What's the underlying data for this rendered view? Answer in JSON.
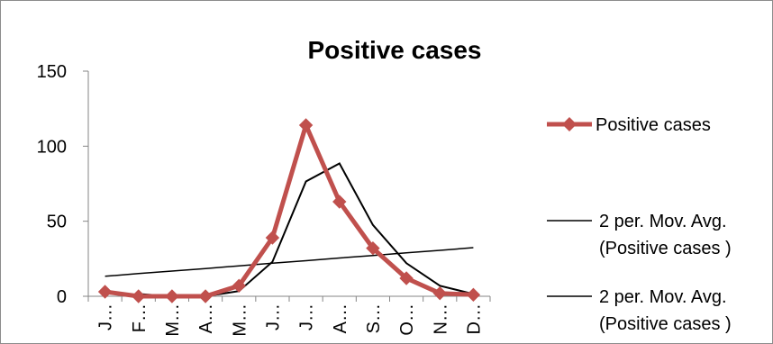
{
  "chart_data": {
    "type": "line",
    "title": "Positive cases",
    "categories": [
      "J…",
      "F…",
      "M…",
      "A…",
      "M…",
      "J…",
      "J…",
      "A…",
      "S…",
      "O…",
      "N…",
      "D…"
    ],
    "ylim": [
      0,
      150
    ],
    "yticks": [
      0,
      50,
      100,
      150
    ],
    "grid": false,
    "legend_position": "right",
    "series": [
      {
        "name": "Positive cases",
        "kind": "markers-line",
        "color": "#c0504d",
        "values": [
          3,
          0,
          0,
          0,
          7,
          39,
          114,
          63,
          32,
          12,
          2,
          1
        ]
      },
      {
        "name_lines": [
          "2 per. Mov. Avg.",
          "(Positive cases )"
        ],
        "kind": "moving-average",
        "color": "#000000",
        "values": [
          null,
          1.5,
          0,
          0,
          3.5,
          23,
          76.5,
          88.5,
          47.5,
          22,
          7,
          1.5
        ]
      },
      {
        "name_lines": [
          "2 per. Mov. Avg.",
          "(Positive cases )"
        ],
        "kind": "trendline",
        "color": "#000000",
        "values": [
          13.3,
          15.1,
          16.8,
          18.5,
          20.3,
          22.0,
          23.7,
          25.5,
          27.2,
          28.9,
          30.6,
          32.4
        ]
      }
    ]
  }
}
